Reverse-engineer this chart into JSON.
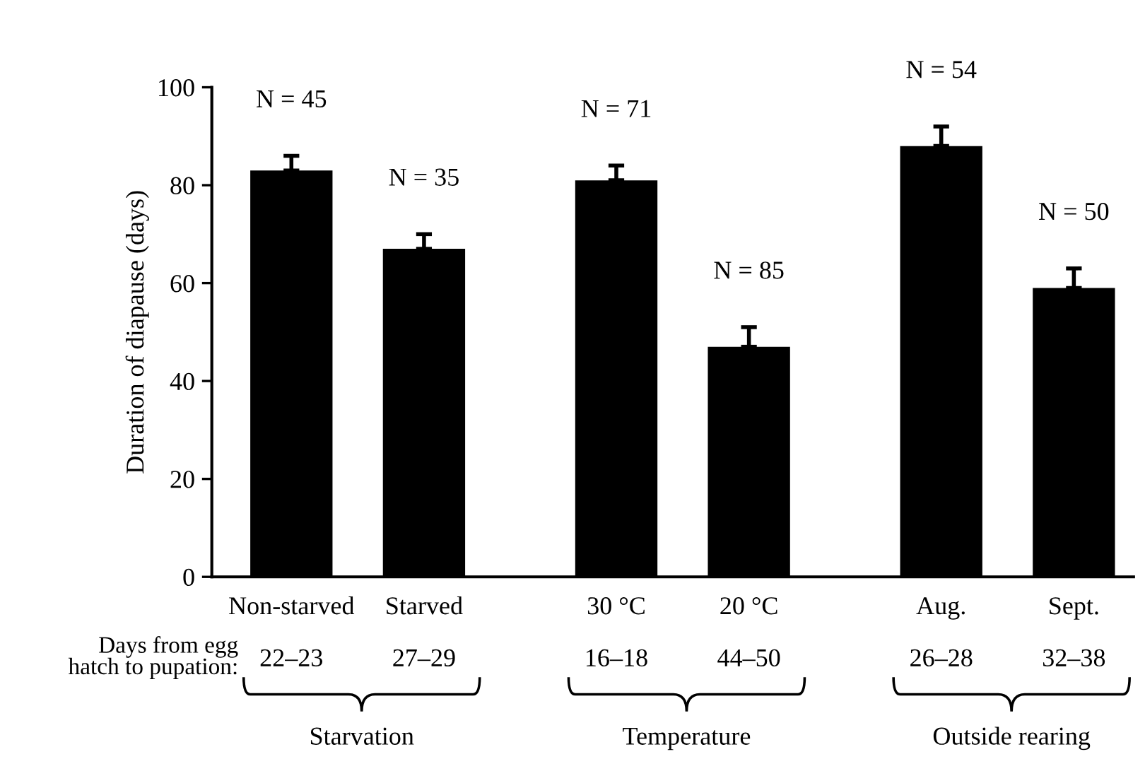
{
  "chart_data": {
    "type": "bar",
    "ylabel": "Duration of diapause (days)",
    "categories": [
      "Non-starved",
      "Starved",
      "30 °C",
      "20 °C",
      "Aug.",
      "Sept."
    ],
    "values": [
      83,
      67,
      81,
      47,
      88,
      59
    ],
    "errors": [
      [
        83,
        86
      ],
      [
        67,
        70
      ],
      [
        81,
        84
      ],
      [
        47,
        51
      ],
      [
        88,
        92
      ],
      [
        59,
        63
      ]
    ],
    "color": "#000000",
    "ylim": [
      0,
      100
    ],
    "yticks": [
      0,
      20,
      40,
      60,
      80,
      100
    ],
    "grid": false,
    "annotations": [
      "N = 45",
      "N = 35",
      "N = 71",
      "N = 85",
      "N = 54",
      "N = 50",
      "Days from egg\nhatch to pupation:",
      "22–23",
      "27–29",
      "16–18",
      "44–50",
      "26–28",
      "32–38",
      "Starvation",
      "Temperature",
      "Outside rearing"
    ]
  }
}
